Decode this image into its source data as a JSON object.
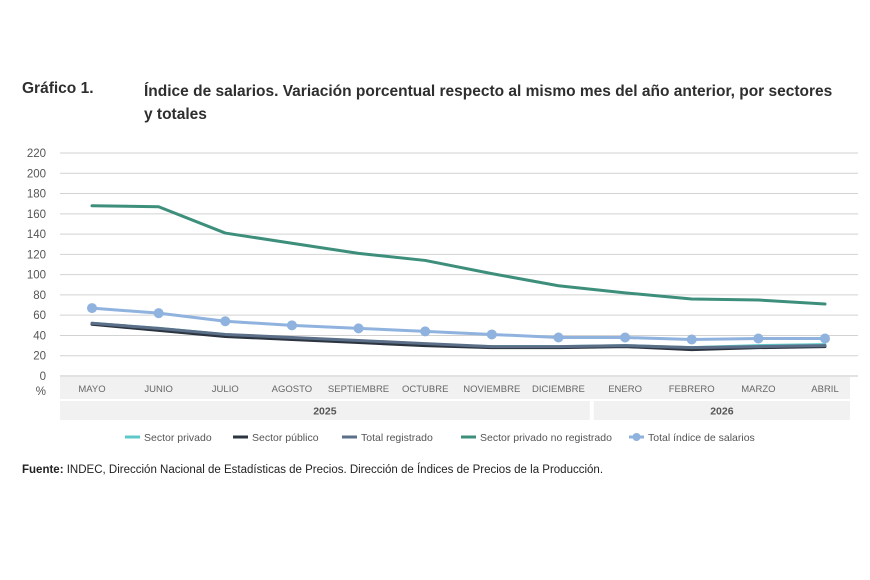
{
  "chart_data": {
    "type": "line",
    "figure_label": "Gráfico 1.",
    "title": "Índice de salarios. Variación porcentual respecto al mismo mes del año anterior, por sectores y totales",
    "ylabel": "%",
    "ylim": [
      0,
      220
    ],
    "yticks": [
      0,
      20,
      40,
      60,
      80,
      100,
      120,
      140,
      160,
      180,
      200,
      220
    ],
    "categories": [
      "MAYO",
      "JUNIO",
      "JULIO",
      "AGOSTO",
      "SEPTIEMBRE",
      "OCTUBRE",
      "NOVIEMBRE",
      "DICIEMBRE",
      "ENERO",
      "FEBRERO",
      "MARZO",
      "ABRIL"
    ],
    "year_groups": [
      {
        "label": "2025",
        "count": 8
      },
      {
        "label": "2026",
        "count": 4
      }
    ],
    "grid": true,
    "legend_position": "bottom",
    "series": [
      {
        "name": "Sector privado",
        "color": "#5ec8c8",
        "markers": false,
        "width": 3,
        "values": [
          52,
          47,
          41,
          37,
          34,
          31,
          29,
          29,
          30,
          28,
          30,
          31
        ]
      },
      {
        "name": "Sector público",
        "color": "#2c3440",
        "markers": false,
        "width": 3,
        "values": [
          51,
          45,
          39,
          36,
          33,
          30,
          28,
          28,
          29,
          26,
          28,
          29
        ]
      },
      {
        "name": "Total registrado",
        "color": "#5b6f88",
        "markers": false,
        "width": 3,
        "values": [
          52,
          47,
          41,
          38,
          35,
          32,
          29,
          29,
          30,
          28,
          29,
          30
        ]
      },
      {
        "name": "Sector privado no registrado",
        "color": "#3d8f7c",
        "markers": false,
        "width": 3,
        "values": [
          168,
          167,
          141,
          131,
          121,
          114,
          101,
          89,
          82,
          76,
          75,
          71
        ]
      },
      {
        "name": "Total índice de salarios",
        "color": "#8fb3de",
        "markers": true,
        "width": 3,
        "values": [
          67,
          62,
          54,
          50,
          47,
          44,
          41,
          38,
          38,
          36,
          37,
          37
        ]
      }
    ]
  },
  "source": {
    "label": "Fuente:",
    "text": "INDEC, Dirección Nacional de Estadísticas de Precios. Dirección de Índices de Precios de la Producción."
  }
}
